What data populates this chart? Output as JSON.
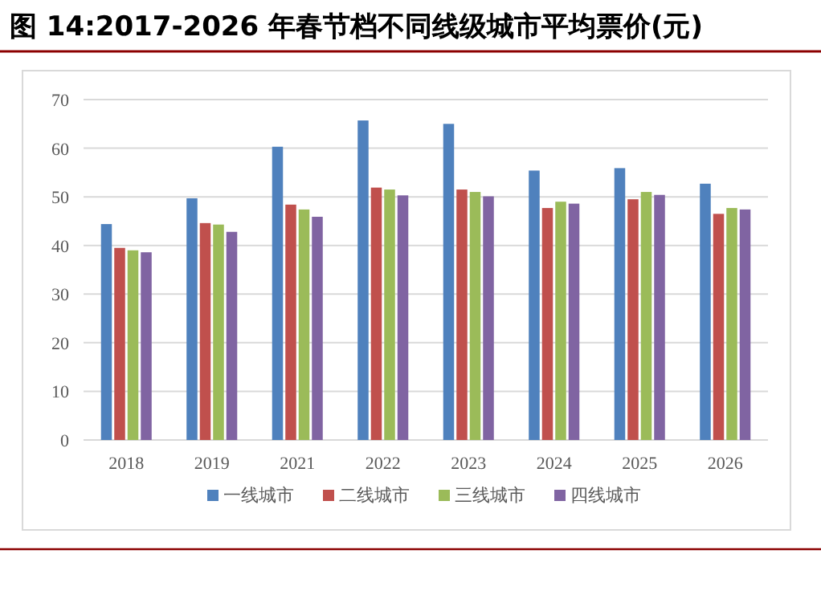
{
  "chart_data": {
    "type": "bar",
    "title": "图 14:2017-2026 年春节档不同线级城市平均票价(元)",
    "categories": [
      "2018",
      "2019",
      "2021",
      "2022",
      "2023",
      "2024",
      "2025",
      "2026"
    ],
    "series": [
      {
        "name": "一线城市",
        "color": "#4f81bd",
        "values": [
          44.4,
          49.7,
          60.3,
          65.7,
          65.0,
          55.4,
          55.9,
          52.7
        ]
      },
      {
        "name": "二线城市",
        "color": "#c0504d",
        "values": [
          39.5,
          44.6,
          48.4,
          51.9,
          51.5,
          47.7,
          49.5,
          46.5
        ]
      },
      {
        "name": "三线城市",
        "color": "#9bbb59",
        "values": [
          39.0,
          44.3,
          47.4,
          51.5,
          51.0,
          49.0,
          51.0,
          47.7
        ]
      },
      {
        "name": "四线城市",
        "color": "#8064a2",
        "values": [
          38.6,
          42.8,
          45.9,
          50.3,
          50.1,
          48.6,
          50.4,
          47.4
        ]
      }
    ],
    "ylim": [
      0,
      70
    ],
    "yticks": [
      0,
      10,
      20,
      30,
      40,
      50,
      60,
      70
    ],
    "grid": "y",
    "legend": "bottom"
  }
}
